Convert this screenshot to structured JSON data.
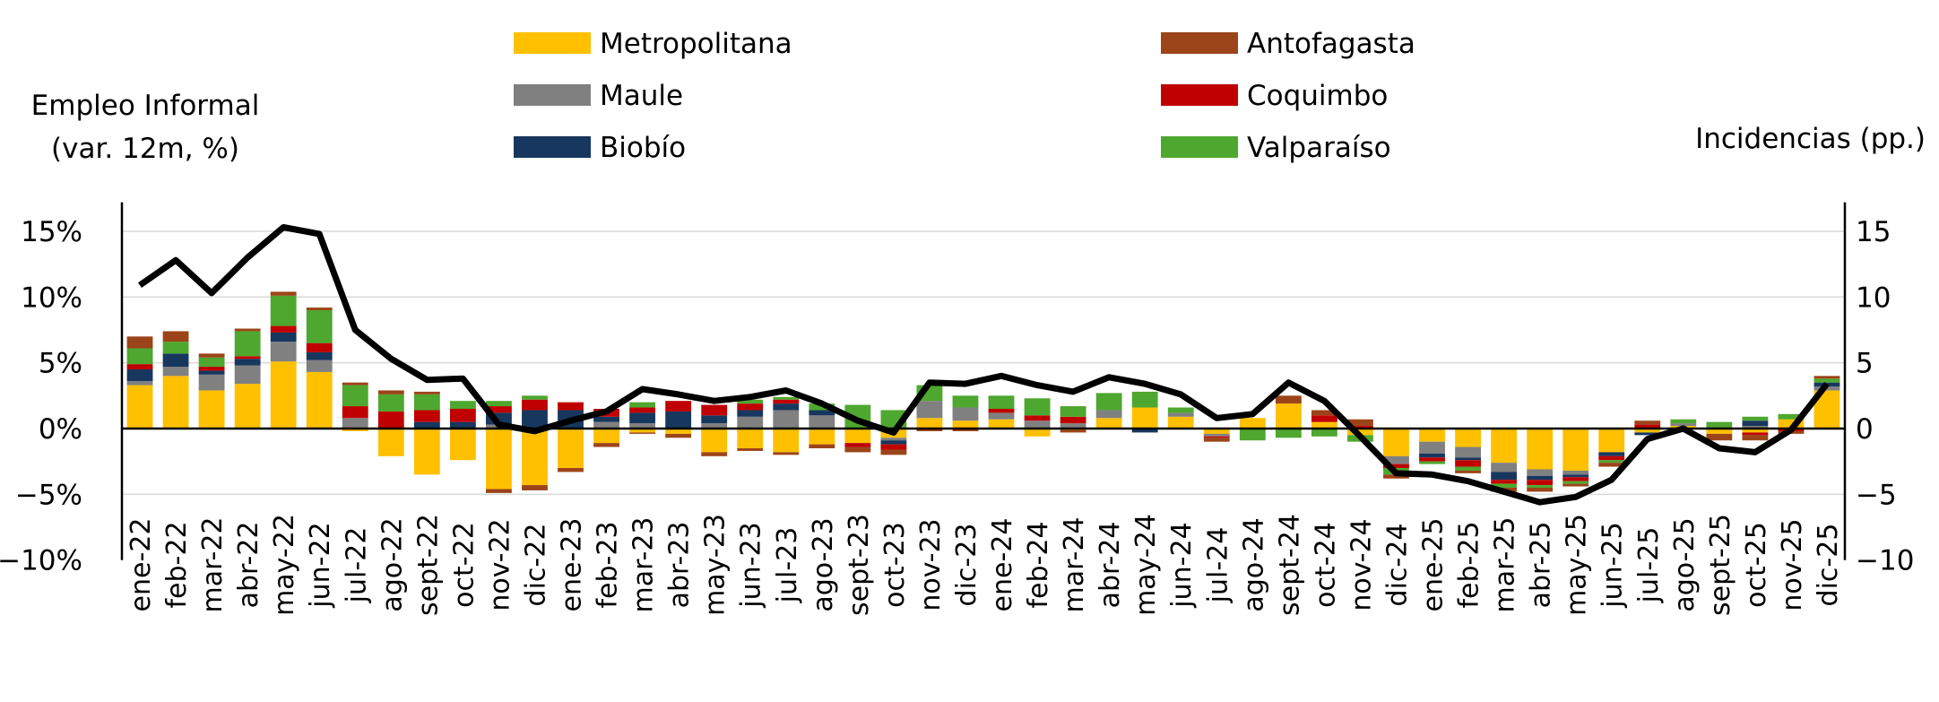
{
  "chart_data": {
    "type": "bar+line",
    "left_axis_label_line1": "Empleo Informal",
    "left_axis_label_line2": "(var. 12m, %)",
    "right_axis_label": "Incidencias (pp.)",
    "left_tick_labels": [
      "15%",
      "10%",
      "5%",
      "0%",
      "−5%",
      "−10%"
    ],
    "right_tick_labels": [
      "15",
      "10",
      "5",
      "0",
      "−5",
      "−10"
    ],
    "tick_values": [
      15,
      10,
      5,
      0,
      -5,
      -10
    ],
    "ylim": [
      -10,
      17
    ],
    "categories": [
      "ene-22",
      "feb-22",
      "mar-22",
      "abr-22",
      "may-22",
      "jun-22",
      "jul-22",
      "ago-22",
      "sept-22",
      "oct-22",
      "nov-22",
      "dic-22",
      "ene-23",
      "feb-23",
      "mar-23",
      "abr-23",
      "may-23",
      "jun-23",
      "jul-23",
      "ago-23",
      "sept-23",
      "oct-23",
      "nov-23",
      "dic-23",
      "ene-24",
      "feb-24",
      "mar-24",
      "abr-24",
      "may-24",
      "jun-24",
      "jul-24",
      "ago-24",
      "sept-24",
      "oct-24",
      "nov-24",
      "dic-24",
      "ene-25",
      "feb-25",
      "mar-25",
      "abr-25",
      "may-25",
      "jun-25",
      "jul-25",
      "ago-25",
      "sept-25",
      "oct-25",
      "nov-25",
      "dic-25"
    ],
    "series": [
      {
        "name": "Metropolitana",
        "color": "#FFC000",
        "values": [
          3.3,
          4.0,
          2.9,
          3.4,
          5.1,
          4.3,
          -0.2,
          -2.1,
          -3.5,
          -2.4,
          -4.6,
          -4.3,
          -3.0,
          -1.1,
          -0.3,
          -0.4,
          -1.8,
          -1.5,
          -1.8,
          -1.2,
          -1.1,
          -0.7,
          0.8,
          0.6,
          0.7,
          -0.6,
          -0.1,
          0.8,
          1.6,
          0.9,
          -0.4,
          0.8,
          1.9,
          0.5,
          -0.5,
          -2.1,
          -1.0,
          -1.4,
          -2.6,
          -3.1,
          -3.2,
          -1.8,
          -0.3,
          0.2,
          -0.4,
          -0.3,
          0.7,
          2.9
        ]
      },
      {
        "name": "Maule",
        "color": "#808080",
        "values": [
          0.3,
          0.7,
          1.2,
          1.4,
          1.5,
          0.9,
          0.8,
          0.0,
          0.0,
          0.0,
          0.3,
          0.0,
          0.0,
          0.5,
          0.4,
          0.0,
          0.4,
          0.9,
          1.4,
          1.0,
          0.0,
          -0.2,
          1.3,
          1.0,
          0.5,
          0.6,
          0.4,
          0.6,
          0.0,
          0.3,
          -0.2,
          0.0,
          0.0,
          0.0,
          0.0,
          -0.6,
          -0.9,
          -0.8,
          -0.7,
          -0.5,
          -0.3,
          0.0,
          0.0,
          0.2,
          0.1,
          0.2,
          0.0,
          0.3
        ]
      },
      {
        "name": "Biobío",
        "color": "#17375E",
        "values": [
          0.9,
          1.0,
          0.3,
          0.5,
          0.7,
          0.6,
          0.0,
          0.0,
          0.5,
          0.5,
          0.9,
          1.4,
          1.4,
          0.4,
          0.8,
          1.3,
          0.6,
          0.5,
          0.5,
          0.4,
          0.0,
          -0.3,
          0.0,
          0.0,
          0.0,
          0.0,
          0.0,
          0.0,
          -0.3,
          0.0,
          0.0,
          0.0,
          0.0,
          0.0,
          0.0,
          0.0,
          -0.3,
          -0.2,
          -0.6,
          -0.3,
          -0.2,
          -0.3,
          -0.2,
          0.0,
          0.0,
          0.4,
          0.0,
          0.3
        ]
      },
      {
        "name": "Coquimbo",
        "color": "#C00000",
        "values": [
          0.4,
          0.0,
          0.3,
          0.2,
          0.5,
          0.7,
          0.9,
          1.3,
          0.9,
          1.0,
          0.5,
          0.8,
          0.6,
          0.6,
          0.4,
          0.8,
          0.8,
          0.5,
          0.3,
          0.0,
          -0.3,
          -0.4,
          0.0,
          0.0,
          0.3,
          0.4,
          0.5,
          0.0,
          0.0,
          0.0,
          -0.1,
          0.0,
          0.0,
          0.5,
          0.2,
          -0.3,
          -0.3,
          -0.5,
          -0.3,
          -0.4,
          -0.3,
          -0.3,
          0.3,
          0.0,
          0.0,
          -0.2,
          -0.2,
          0.0
        ]
      },
      {
        "name": "Valparaíso",
        "color": "#4EA72E",
        "values": [
          1.2,
          0.9,
          0.7,
          1.9,
          2.3,
          2.5,
          1.6,
          1.3,
          1.2,
          0.6,
          0.4,
          0.3,
          0.0,
          0.0,
          0.4,
          0.0,
          0.0,
          0.3,
          0.2,
          0.5,
          1.8,
          1.4,
          1.2,
          0.9,
          1.0,
          1.3,
          0.8,
          1.3,
          1.2,
          0.4,
          0.0,
          -0.9,
          -0.7,
          -0.6,
          -0.5,
          -0.5,
          -0.2,
          -0.3,
          -0.3,
          -0.2,
          -0.2,
          -0.2,
          0.0,
          0.3,
          0.4,
          0.3,
          0.4,
          0.3
        ]
      },
      {
        "name": "Antofagasta",
        "color": "#9C4419",
        "values": [
          0.9,
          0.8,
          0.3,
          0.2,
          0.3,
          0.2,
          0.2,
          0.3,
          0.2,
          0.0,
          -0.3,
          -0.4,
          -0.3,
          -0.3,
          -0.1,
          -0.3,
          -0.3,
          -0.2,
          -0.2,
          -0.3,
          -0.4,
          -0.4,
          -0.2,
          -0.2,
          0.0,
          0.0,
          -0.2,
          0.0,
          0.0,
          0.0,
          -0.3,
          0.0,
          0.6,
          0.4,
          0.5,
          -0.3,
          0.0,
          -0.2,
          -0.3,
          -0.3,
          -0.2,
          -0.3,
          0.3,
          0.0,
          -0.5,
          -0.4,
          -0.2,
          0.2
        ]
      }
    ],
    "line": {
      "name": "Empleo Informal",
      "color": "#000000",
      "values": [
        10.9,
        12.8,
        10.3,
        13.0,
        15.3,
        14.8,
        7.5,
        5.3,
        3.7,
        3.8,
        0.3,
        -0.2,
        0.6,
        1.3,
        3.0,
        2.6,
        2.1,
        2.4,
        2.9,
        1.9,
        0.6,
        -0.3,
        3.5,
        3.4,
        4.0,
        3.3,
        2.8,
        3.9,
        3.4,
        2.6,
        0.8,
        1.1,
        3.5,
        2.1,
        -0.6,
        -3.4,
        -3.5,
        -4.0,
        -4.8,
        -5.6,
        -5.2,
        -3.9,
        -0.8,
        0.0,
        -1.5,
        -1.8,
        -0.1,
        3.4
      ]
    }
  }
}
